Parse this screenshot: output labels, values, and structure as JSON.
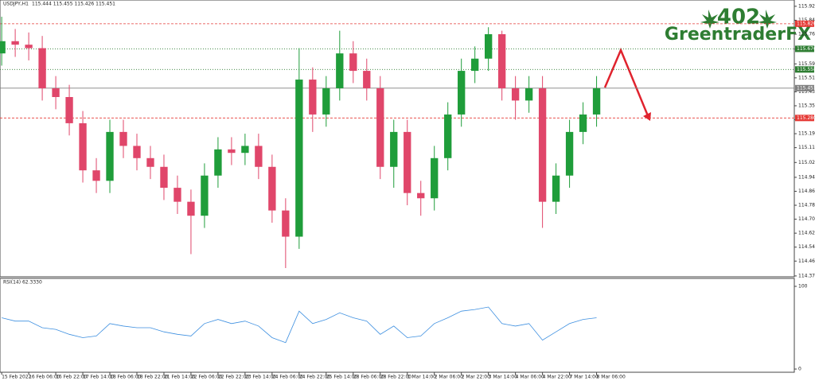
{
  "chart_data": {
    "type": "candlestick",
    "title": "USDJPY,H1",
    "subtitle": "115.444 115.455 115.426 115.451",
    "x": [
      0,
      8,
      16,
      24,
      32,
      40,
      48,
      56,
      64,
      72,
      80,
      88,
      96,
      104,
      112,
      120,
      128,
      136,
      144,
      152,
      160,
      168,
      176,
      184,
      192,
      200,
      208,
      216,
      224,
      232,
      240,
      248,
      256,
      264,
      272,
      280,
      288,
      296,
      304,
      312,
      320,
      328,
      336,
      344,
      352
    ],
    "open": [
      115.65,
      115.72,
      115.7,
      115.68,
      115.45,
      115.4,
      115.25,
      114.98,
      114.92,
      115.2,
      115.12,
      115.05,
      115.0,
      114.88,
      114.8,
      114.72,
      114.95,
      115.1,
      115.08,
      115.12,
      115.0,
      114.75,
      114.6,
      115.5,
      115.3,
      115.45,
      115.65,
      115.55,
      115.45,
      115.0,
      115.2,
      114.85,
      114.82,
      115.05,
      115.3,
      115.55,
      115.62,
      115.76,
      115.45,
      115.38,
      115.45,
      114.8,
      114.95,
      115.2,
      115.3
    ],
    "high": [
      115.86,
      115.79,
      115.77,
      115.75,
      115.52,
      115.47,
      115.32,
      115.05,
      115.27,
      115.27,
      115.19,
      115.12,
      115.07,
      114.95,
      114.87,
      115.02,
      115.17,
      115.17,
      115.19,
      115.19,
      115.07,
      114.82,
      115.68,
      115.57,
      115.52,
      115.78,
      115.72,
      115.62,
      115.52,
      115.27,
      115.27,
      114.92,
      115.12,
      115.37,
      115.62,
      115.69,
      115.8,
      115.78,
      115.52,
      115.52,
      115.52,
      115.02,
      115.27,
      115.37,
      115.52
    ],
    "low": [
      115.58,
      115.63,
      115.61,
      115.38,
      115.33,
      115.18,
      114.91,
      114.85,
      114.85,
      115.05,
      114.98,
      114.93,
      114.81,
      114.73,
      114.5,
      114.65,
      114.88,
      115.01,
      115.01,
      114.93,
      114.68,
      114.42,
      114.53,
      115.2,
      115.23,
      115.38,
      115.48,
      115.38,
      114.93,
      114.88,
      114.78,
      114.72,
      114.75,
      114.98,
      115.23,
      115.48,
      115.55,
      115.38,
      115.27,
      115.31,
      114.65,
      114.73,
      114.88,
      115.13,
      115.23
    ],
    "close": [
      115.72,
      115.7,
      115.68,
      115.45,
      115.4,
      115.25,
      114.98,
      114.92,
      115.2,
      115.12,
      115.05,
      115.0,
      114.88,
      114.8,
      114.72,
      114.95,
      115.1,
      115.08,
      115.12,
      115.0,
      114.75,
      114.6,
      115.5,
      115.3,
      115.45,
      115.65,
      115.55,
      115.45,
      115.0,
      115.2,
      114.85,
      114.82,
      115.05,
      115.3,
      115.55,
      115.62,
      115.76,
      115.45,
      115.38,
      115.45,
      114.8,
      114.95,
      115.2,
      115.3,
      115.45
    ],
    "up_color": "#1f9d3a",
    "down_color": "#e0466a",
    "xlim": [
      -1,
      469
    ],
    "xticks": [
      {
        "value": 0,
        "label": "15 Feb 2022"
      },
      {
        "value": 16,
        "label": "16 Feb 06:00"
      },
      {
        "value": 32,
        "label": "16 Feb 22:00"
      },
      {
        "value": 48,
        "label": "17 Feb 14:00"
      },
      {
        "value": 64,
        "label": "18 Feb 06:00"
      },
      {
        "value": 80,
        "label": "18 Feb 22:00"
      },
      {
        "value": 96,
        "label": "21 Feb 14:00"
      },
      {
        "value": 112,
        "label": "22 Feb 06:00"
      },
      {
        "value": 128,
        "label": "22 Feb 22:00"
      },
      {
        "value": 144,
        "label": "23 Feb 14:00"
      },
      {
        "value": 160,
        "label": "24 Feb 06:00"
      },
      {
        "value": 176,
        "label": "24 Feb 22:00"
      },
      {
        "value": 192,
        "label": "25 Feb 14:00"
      },
      {
        "value": 208,
        "label": "28 Feb 06:00"
      },
      {
        "value": 224,
        "label": "28 Feb 22:00"
      },
      {
        "value": 240,
        "label": "1 Mar 14:00"
      },
      {
        "value": 256,
        "label": "2 Mar 06:00"
      },
      {
        "value": 272,
        "label": "2 Mar 22:00"
      },
      {
        "value": 288,
        "label": "3 Mar 14:00"
      },
      {
        "value": 304,
        "label": "4 Mar 06:00"
      },
      {
        "value": 320,
        "label": "4 Mar 22:00"
      },
      {
        "value": 336,
        "label": "7 Mar 14:00"
      },
      {
        "value": 352,
        "label": "8 Mar 06:00"
      }
    ],
    "ylim": [
      114.37,
      115.956
    ],
    "yticks": [
      {
        "value": 115.92,
        "label": "115.920"
      },
      {
        "value": 115.84,
        "label": "115.840"
      },
      {
        "value": 115.76,
        "label": "115.760"
      },
      {
        "value": 115.675,
        "label": "115.675"
      },
      {
        "value": 115.59,
        "label": "115.590"
      },
      {
        "value": 115.51,
        "label": "115.510"
      },
      {
        "value": 115.43,
        "label": "115.430"
      },
      {
        "value": 115.35,
        "label": "115.350"
      },
      {
        "value": 115.27,
        "label": "115.270"
      },
      {
        "value": 115.19,
        "label": "115.190"
      },
      {
        "value": 115.11,
        "label": "115.110"
      },
      {
        "value": 115.025,
        "label": "115.025"
      },
      {
        "value": 114.94,
        "label": "114.940"
      },
      {
        "value": 114.86,
        "label": "114.860"
      },
      {
        "value": 114.78,
        "label": "114.780"
      },
      {
        "value": 114.7,
        "label": "114.700"
      },
      {
        "value": 114.62,
        "label": "114.620"
      },
      {
        "value": 114.54,
        "label": "114.540"
      },
      {
        "value": 114.46,
        "label": "114.460"
      },
      {
        "value": 114.375,
        "label": "114.375"
      }
    ],
    "levels": [
      {
        "value": 115.82,
        "label": "115.820",
        "color": "#e53935",
        "style": "dashed"
      },
      {
        "value": 115.676,
        "label": "115.676",
        "color": "#2e7d32",
        "style": "dotted"
      },
      {
        "value": 115.558,
        "label": "115.558",
        "color": "#2e7d32",
        "style": "dotted"
      },
      {
        "value": 115.451,
        "label": "115.451",
        "color": "#808080",
        "style": "solid"
      },
      {
        "value": 115.28,
        "label": "115.280",
        "color": "#e53935",
        "style": "dashed"
      }
    ],
    "indicator": {
      "name": "RSI(14) 62.3330",
      "color": "#3d8fe0",
      "ylim": [
        0,
        100
      ],
      "yticks": [
        0,
        100
      ],
      "values": [
        62,
        58,
        58,
        50,
        48,
        42,
        38,
        40,
        55,
        52,
        50,
        50,
        45,
        42,
        40,
        55,
        60,
        55,
        58,
        52,
        38,
        32,
        70,
        55,
        60,
        68,
        62,
        58,
        42,
        52,
        38,
        40,
        55,
        62,
        70,
        72,
        75,
        55,
        52,
        55,
        35,
        45,
        55,
        60,
        62
      ]
    },
    "watermark": {
      "number": "402",
      "name": "GreentraderFX"
    }
  }
}
